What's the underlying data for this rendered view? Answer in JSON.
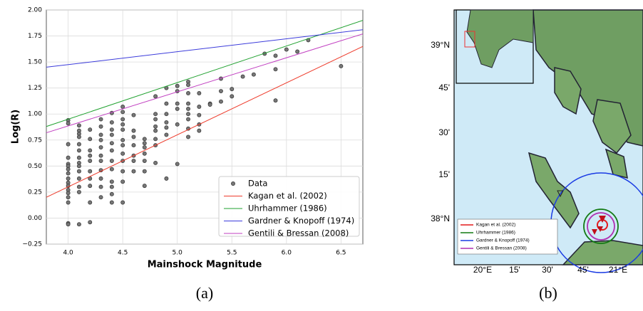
{
  "chart_data": {
    "type": "scatter",
    "xlabel": "Mainshock Magnitude",
    "ylabel": "Log(R)",
    "caption": "(a)",
    "xlim": [
      3.8,
      6.7
    ],
    "ylim": [
      -0.25,
      2.0
    ],
    "xticks": [
      {
        "value": 4,
        "label": "4.0"
      },
      {
        "value": 4.5,
        "label": "4.5"
      },
      {
        "value": 5,
        "label": "5.0"
      },
      {
        "value": 5.5,
        "label": "5.5"
      },
      {
        "value": 6,
        "label": "6.0"
      },
      {
        "value": 6.5,
        "label": "6.5"
      }
    ],
    "yticks": [
      {
        "value": -0.25,
        "label": "−0.25"
      },
      {
        "value": 0,
        "label": "0.00"
      },
      {
        "value": 0.25,
        "label": "0.25"
      },
      {
        "value": 0.5,
        "label": "0.50"
      },
      {
        "value": 0.75,
        "label": "0.75"
      },
      {
        "value": 1,
        "label": "1.00"
      },
      {
        "value": 1.25,
        "label": "1.25"
      },
      {
        "value": 1.5,
        "label": "1.50"
      },
      {
        "value": 1.75,
        "label": "1.75"
      },
      {
        "value": 2,
        "label": "2.00"
      }
    ],
    "grid": true,
    "legend": "lower right",
    "series": [
      {
        "name": "Data",
        "type": "scatter",
        "color": "#777777",
        "x": [
          4.0,
          4.0,
          4.0,
          4.0,
          4.0,
          4.0,
          4.0,
          4.0,
          4.0,
          4.0,
          4.0,
          4.0,
          4.0,
          4.0,
          4.0,
          4.0,
          4.0,
          4.1,
          4.1,
          4.1,
          4.1,
          4.1,
          4.1,
          4.1,
          4.1,
          4.1,
          4.1,
          4.1,
          4.1,
          4.1,
          4.1,
          4.2,
          4.2,
          4.2,
          4.2,
          4.2,
          4.2,
          4.2,
          4.2,
          4.2,
          4.2,
          4.3,
          4.3,
          4.3,
          4.3,
          4.3,
          4.3,
          4.3,
          4.3,
          4.3,
          4.3,
          4.3,
          4.4,
          4.4,
          4.4,
          4.4,
          4.4,
          4.4,
          4.4,
          4.4,
          4.4,
          4.4,
          4.4,
          4.4,
          4.5,
          4.5,
          4.5,
          4.5,
          4.5,
          4.5,
          4.5,
          4.5,
          4.5,
          4.5,
          4.5,
          4.5,
          4.6,
          4.6,
          4.6,
          4.6,
          4.6,
          4.6,
          4.6,
          4.7,
          4.7,
          4.7,
          4.7,
          4.7,
          4.7,
          4.7,
          4.8,
          4.8,
          4.8,
          4.8,
          4.8,
          4.8,
          4.8,
          4.8,
          4.9,
          4.9,
          4.9,
          4.9,
          4.9,
          4.9,
          4.9,
          5.0,
          5.0,
          5.0,
          5.0,
          5.0,
          5.0,
          5.1,
          5.1,
          5.1,
          5.1,
          5.1,
          5.1,
          5.1,
          5.1,
          5.1,
          5.2,
          5.2,
          5.2,
          5.2,
          5.2,
          5.3,
          5.3,
          5.4,
          5.4,
          5.4,
          5.5,
          5.5,
          5.6,
          5.7,
          5.8,
          5.9,
          5.9,
          5.9,
          6.0,
          6.1,
          6.2,
          6.5
        ],
        "values": [
          0.94,
          0.91,
          0.71,
          0.58,
          0.52,
          0.5,
          0.47,
          0.43,
          0.38,
          0.34,
          0.31,
          0.27,
          0.24,
          0.2,
          0.15,
          -0.05,
          -0.06,
          0.89,
          0.84,
          0.81,
          0.78,
          0.71,
          0.65,
          0.58,
          0.53,
          0.5,
          0.45,
          0.38,
          0.3,
          0.25,
          -0.06,
          0.85,
          0.76,
          0.65,
          0.6,
          0.55,
          0.45,
          0.38,
          0.31,
          0.15,
          -0.04,
          0.95,
          0.88,
          0.8,
          0.75,
          0.68,
          0.6,
          0.55,
          0.46,
          0.38,
          0.3,
          0.2,
          1.01,
          0.92,
          0.85,
          0.8,
          0.72,
          0.65,
          0.55,
          0.47,
          0.35,
          0.3,
          0.23,
          0.15,
          1.07,
          1.02,
          0.95,
          0.9,
          0.85,
          0.75,
          0.7,
          0.62,
          0.55,
          0.45,
          0.35,
          0.15,
          0.99,
          0.84,
          0.78,
          0.7,
          0.6,
          0.55,
          0.45,
          0.76,
          0.72,
          0.68,
          0.62,
          0.55,
          0.45,
          0.31,
          1.17,
          1.0,
          0.95,
          0.88,
          0.84,
          0.76,
          0.7,
          0.53,
          1.25,
          1.1,
          1.0,
          0.92,
          0.87,
          0.8,
          0.38,
          1.27,
          1.22,
          1.1,
          1.05,
          0.9,
          0.52,
          1.31,
          1.28,
          1.2,
          1.1,
          1.05,
          1.0,
          0.95,
          0.86,
          0.78,
          1.2,
          1.07,
          0.99,
          0.9,
          0.84,
          1.1,
          1.09,
          1.34,
          1.22,
          1.12,
          1.24,
          1.17,
          1.36,
          1.38,
          1.58,
          1.56,
          1.43,
          1.13,
          1.62,
          1.6,
          1.71,
          1.46
        ]
      },
      {
        "name": "Kagan et al. (2002)",
        "type": "line",
        "color": "#ee3b2b",
        "x": [
          3.8,
          6.7
        ],
        "values": [
          0.2,
          1.65
        ]
      },
      {
        "name": "Uhrhammer (1986)",
        "type": "line",
        "color": "#1fa12f",
        "x": [
          3.8,
          6.7
        ],
        "values": [
          0.88,
          1.9
        ]
      },
      {
        "name": "Gardner & Knopoff (1974)",
        "type": "line",
        "color": "#3b3bdb",
        "x": [
          3.8,
          6.7
        ],
        "values": [
          1.45,
          1.81
        ]
      },
      {
        "name": "Gentili & Bressan (2008)",
        "type": "line",
        "color": "#c13fc1",
        "x": [
          3.8,
          6.7
        ],
        "values": [
          0.82,
          1.77
        ]
      }
    ]
  },
  "map": {
    "caption": "(b)",
    "lat_labels": [
      "39°N",
      "45'",
      "30'",
      "15'",
      "38°N"
    ],
    "lon_labels": [
      "20°E",
      "15'",
      "30'",
      "45'",
      "21°E"
    ],
    "legend": [
      {
        "label": "Kagan et al. (2002)",
        "color": "#e41a1c"
      },
      {
        "label": "Uhrhammer (1986)",
        "color": "#127a12"
      },
      {
        "label": "Gardner & Knopoff (1974)",
        "color": "#1a3be4"
      },
      {
        "label": "Gentili & Bressan (2008)",
        "color": "#b02fb0"
      }
    ]
  }
}
